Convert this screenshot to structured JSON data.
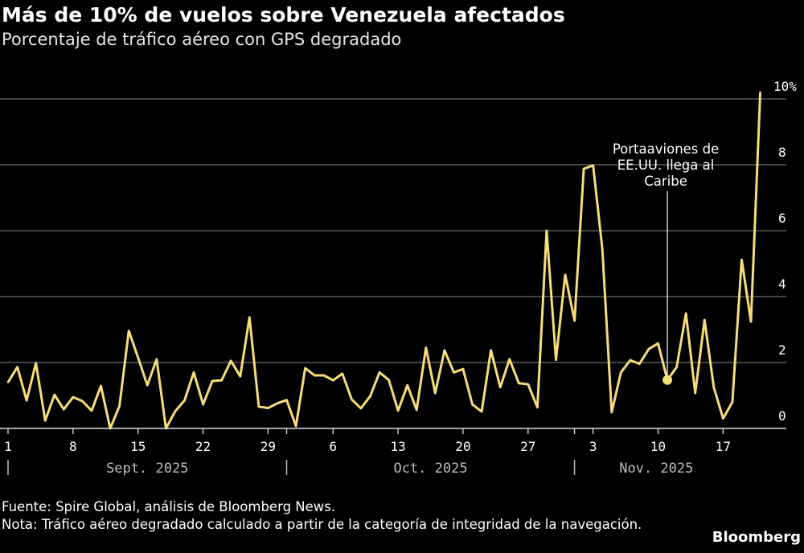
{
  "header": {
    "title": "Más de 10% de vuelos sobre Venezuela afectados",
    "subtitle": "Porcentaje de tráfico aéreo con GPS degradado"
  },
  "footer": {
    "source": "Fuente: Spire Global, análisis de Bloomberg News.",
    "note": "Nota: Tráfico aéreo degradado calculado a partir de la categoría de integridad de la navegación.",
    "brand": "Bloomberg"
  },
  "chart_data": {
    "type": "line",
    "title": "Más de 10% de vuelos sobre Venezuela afectados",
    "subtitle": "Porcentaje de tráfico aéreo con GPS degradado",
    "xlabel": "",
    "ylabel": "",
    "ylim": [
      0,
      10
    ],
    "y_ticks": [
      "0",
      "2",
      "4",
      "6",
      "8",
      "10%"
    ],
    "y_tick_values": [
      0,
      2,
      4,
      6,
      8,
      10
    ],
    "x_tick_labels": [
      {
        "date": "2025-09-01",
        "label": "1"
      },
      {
        "date": "2025-09-08",
        "label": "8"
      },
      {
        "date": "2025-09-15",
        "label": "15"
      },
      {
        "date": "2025-09-22",
        "label": "22"
      },
      {
        "date": "2025-09-29",
        "label": "29"
      },
      {
        "date": "2025-10-06",
        "label": "6"
      },
      {
        "date": "2025-10-13",
        "label": "13"
      },
      {
        "date": "2025-10-20",
        "label": "20"
      },
      {
        "date": "2025-10-27",
        "label": "27"
      },
      {
        "date": "2025-11-03",
        "label": "3"
      },
      {
        "date": "2025-11-10",
        "label": "10"
      },
      {
        "date": "2025-11-17",
        "label": "17"
      }
    ],
    "months": [
      {
        "start": "2025-09-01",
        "label": "Sept. 2025"
      },
      {
        "start": "2025-10-01",
        "label": "Oct. 2025"
      },
      {
        "start": "2025-11-01",
        "label": "Nov. 2025"
      }
    ],
    "grid": true,
    "line_color": "#f7dc7a",
    "x": [
      "2025-09-01",
      "2025-09-02",
      "2025-09-03",
      "2025-09-04",
      "2025-09-05",
      "2025-09-06",
      "2025-09-07",
      "2025-09-08",
      "2025-09-09",
      "2025-09-10",
      "2025-09-11",
      "2025-09-12",
      "2025-09-13",
      "2025-09-14",
      "2025-09-15",
      "2025-09-16",
      "2025-09-17",
      "2025-09-18",
      "2025-09-19",
      "2025-09-20",
      "2025-09-21",
      "2025-09-22",
      "2025-09-23",
      "2025-09-24",
      "2025-09-25",
      "2025-09-26",
      "2025-09-27",
      "2025-09-28",
      "2025-09-29",
      "2025-09-30",
      "2025-10-01",
      "2025-10-02",
      "2025-10-03",
      "2025-10-04",
      "2025-10-05",
      "2025-10-06",
      "2025-10-07",
      "2025-10-08",
      "2025-10-09",
      "2025-10-10",
      "2025-10-11",
      "2025-10-12",
      "2025-10-13",
      "2025-10-14",
      "2025-10-15",
      "2025-10-16",
      "2025-10-17",
      "2025-10-18",
      "2025-10-19",
      "2025-10-20",
      "2025-10-21",
      "2025-10-22",
      "2025-10-23",
      "2025-10-24",
      "2025-10-25",
      "2025-10-26",
      "2025-10-27",
      "2025-10-28",
      "2025-10-29",
      "2025-10-30",
      "2025-10-31",
      "2025-11-01",
      "2025-11-02",
      "2025-11-03",
      "2025-11-04",
      "2025-11-05",
      "2025-11-06",
      "2025-11-07",
      "2025-11-08",
      "2025-11-09",
      "2025-11-10",
      "2025-11-11",
      "2025-11-12",
      "2025-11-13",
      "2025-11-14",
      "2025-11-15",
      "2025-11-16",
      "2025-11-17",
      "2025-11-18",
      "2025-11-19",
      "2025-11-20",
      "2025-11-21"
    ],
    "values": [
      1.4,
      1.86,
      0.85,
      1.98,
      0.24,
      1.02,
      0.58,
      0.95,
      0.83,
      0.54,
      1.29,
      0.0,
      0.68,
      2.96,
      2.15,
      1.31,
      2.1,
      0.0,
      0.52,
      0.85,
      1.7,
      0.73,
      1.44,
      1.46,
      2.05,
      1.58,
      3.37,
      0.66,
      0.62,
      0.76,
      0.86,
      0.07,
      1.83,
      1.61,
      1.61,
      1.46,
      1.66,
      0.88,
      0.61,
      0.98,
      1.7,
      1.47,
      0.54,
      1.31,
      0.56,
      2.45,
      1.07,
      2.37,
      1.7,
      1.8,
      0.73,
      0.51,
      2.37,
      1.25,
      2.1,
      1.37,
      1.34,
      0.64,
      6.0,
      2.08,
      4.66,
      3.27,
      7.88,
      7.98,
      5.44,
      0.49,
      1.7,
      2.07,
      1.96,
      2.41,
      2.58,
      1.47,
      1.86,
      3.49,
      1.07,
      3.29,
      1.25,
      0.3,
      0.8,
      5.12,
      3.24,
      10.2
    ],
    "annotation": {
      "date": "2025-11-11",
      "value": 1.47,
      "lines": [
        "Portaaviones de",
        "EE.UU. llega al",
        "Caribe"
      ]
    }
  }
}
